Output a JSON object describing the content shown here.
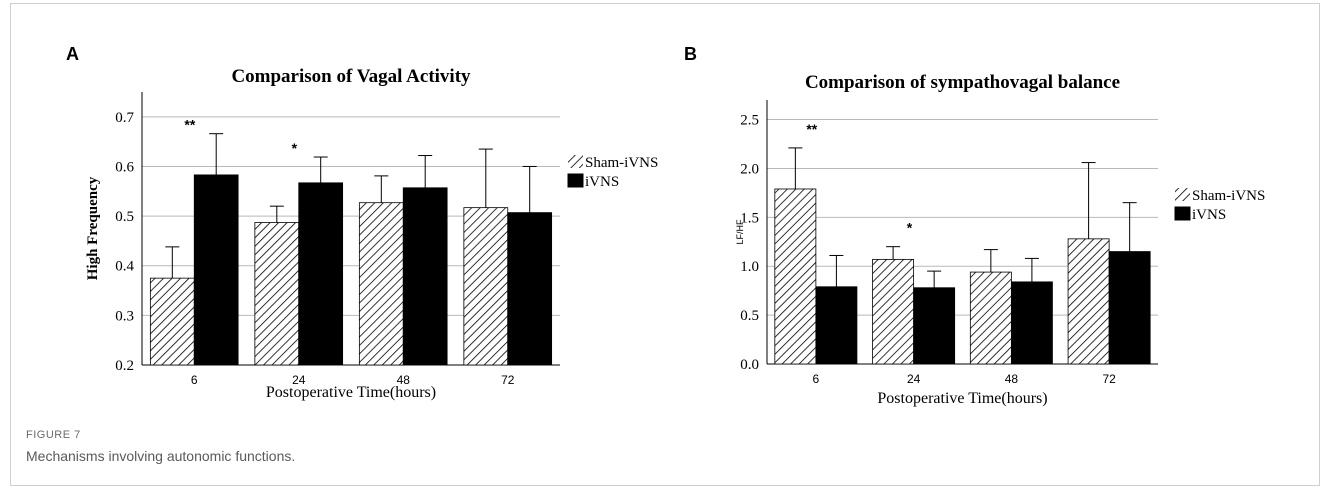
{
  "figure": {
    "label": "FIGURE 7",
    "caption": "Mechanisms involving autonomic functions."
  },
  "panels": [
    {
      "letter": "A"
    },
    {
      "letter": "B"
    }
  ],
  "chart_data": [
    {
      "type": "bar",
      "title": "Comparison of Vagal Activity",
      "xlabel": "Postoperative Time(hours)",
      "ylabel": "High Frequency",
      "categories": [
        "6",
        "24",
        "48",
        "72"
      ],
      "ylim": [
        0.2,
        0.75
      ],
      "yticks": [
        0.2,
        0.3,
        0.4,
        0.5,
        0.6,
        0.7
      ],
      "ytick_labels": [
        "0.2",
        "0.3",
        "0.4",
        "0.5",
        "0.6",
        "0.7"
      ],
      "grid": true,
      "legend": "right",
      "series": [
        {
          "name": "Sham-iVNS",
          "pattern": "hatched",
          "values": [
            0.375,
            0.487,
            0.527,
            0.517
          ],
          "error_upper": [
            0.438,
            0.52,
            0.581,
            0.635
          ]
        },
        {
          "name": "iVNS",
          "pattern": "solid",
          "color": "#000000",
          "values": [
            0.583,
            0.567,
            0.557,
            0.507
          ],
          "error_upper": [
            0.666,
            0.619,
            0.622,
            0.6
          ]
        }
      ],
      "significance": [
        {
          "category": "6",
          "label": "**"
        },
        {
          "category": "24",
          "label": "*"
        }
      ]
    },
    {
      "type": "bar",
      "title": "Comparison of sympathovagal balance",
      "xlabel": "Postoperative Time(hours)",
      "ylabel": "LF/HF",
      "categories": [
        "6",
        "24",
        "48",
        "72"
      ],
      "ylim": [
        0.0,
        2.7
      ],
      "yticks": [
        0.0,
        0.5,
        1.0,
        1.5,
        2.0,
        2.5
      ],
      "ytick_labels": [
        "0.0",
        "0.5",
        "1.0",
        "1.5",
        "2.0",
        "2.5"
      ],
      "grid": true,
      "legend": "right",
      "series": [
        {
          "name": "Sham-iVNS",
          "pattern": "hatched",
          "values": [
            1.79,
            1.07,
            0.94,
            1.28
          ],
          "error_upper": [
            2.21,
            1.2,
            1.17,
            2.06
          ]
        },
        {
          "name": "iVNS",
          "pattern": "solid",
          "color": "#000000",
          "values": [
            0.79,
            0.78,
            0.84,
            1.15
          ],
          "error_upper": [
            1.11,
            0.95,
            1.08,
            1.65
          ]
        }
      ],
      "significance": [
        {
          "category": "6",
          "label": "**"
        },
        {
          "category": "24",
          "label": "*"
        }
      ]
    }
  ]
}
